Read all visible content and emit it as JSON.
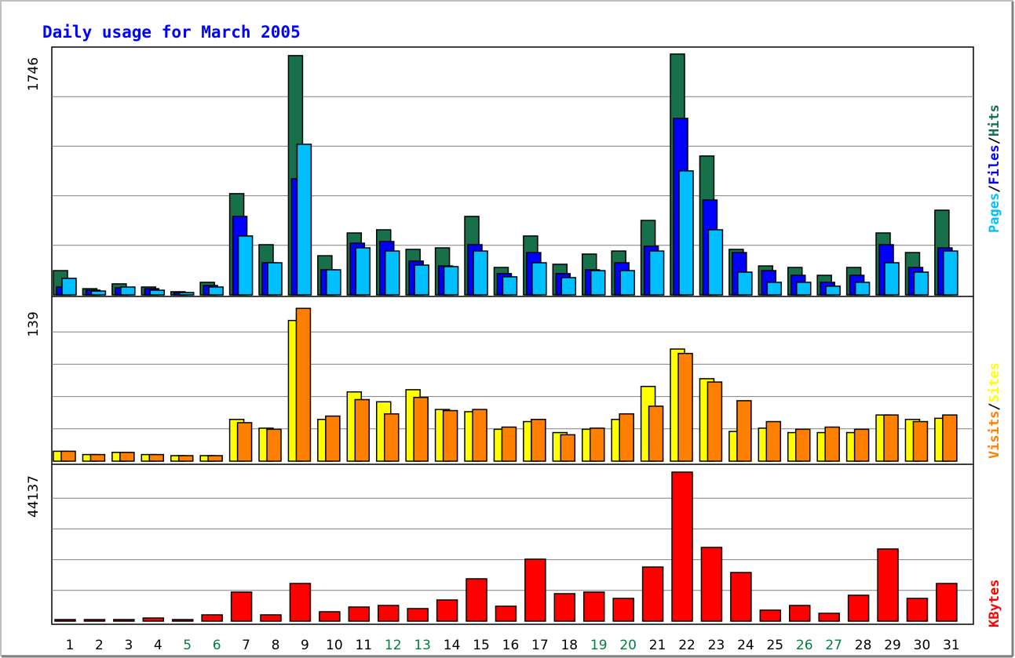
{
  "title": "Daily usage for March 2005",
  "legend_separator": "/",
  "chart_data": [
    {
      "type": "bar",
      "ylim": [
        0,
        1797
      ],
      "yticks": [
        1746
      ],
      "series": [
        {
          "name": "Hits",
          "color": "#17704a",
          "values": [
            176,
            45,
            80,
            57,
            23,
            91,
            734,
            364,
            1735,
            284,
            449,
            472,
            330,
            341,
            569,
            199,
            427,
            222,
            296,
            318,
            540,
            1746,
            1007,
            330,
            210,
            199,
            142,
            199,
            449,
            307,
            614
          ]
        },
        {
          "name": "Files",
          "color": "#0000ff",
          "values": [
            57,
            34,
            51,
            45,
            17,
            68,
            569,
            233,
            842,
            182,
            375,
            387,
            245,
            210,
            364,
            154,
            307,
            154,
            182,
            233,
            353,
            1280,
            688,
            307,
            176,
            142,
            91,
            142,
            364,
            199,
            341
          ]
        },
        {
          "name": "Pages",
          "color": "#00bfff",
          "values": [
            120,
            28,
            57,
            34,
            17,
            57,
            427,
            233,
            1092,
            182,
            341,
            318,
            216,
            205,
            318,
            131,
            233,
            125,
            176,
            176,
            318,
            899,
            472,
            165,
            91,
            91,
            63,
            91,
            233,
            165,
            318
          ]
        }
      ]
    },
    {
      "type": "bar",
      "ylim": [
        0,
        147
      ],
      "yticks": [
        139
      ],
      "series": [
        {
          "name": "Sites",
          "color": "#ffff00",
          "values": [
            9,
            6,
            8,
            6,
            5,
            5,
            38,
            30,
            128,
            38,
            63,
            54,
            65,
            47,
            45,
            29,
            36,
            26,
            29,
            38,
            68,
            102,
            75,
            27,
            30,
            26,
            26,
            26,
            42,
            38,
            39
          ]
        },
        {
          "name": "Visits",
          "color": "#ff8000",
          "values": [
            9,
            6,
            8,
            6,
            5,
            5,
            35,
            29,
            139,
            41,
            56,
            43,
            58,
            46,
            47,
            31,
            38,
            24,
            30,
            43,
            50,
            98,
            72,
            55,
            36,
            29,
            31,
            29,
            42,
            36,
            42
          ]
        }
      ]
    },
    {
      "type": "bar",
      "ylim": [
        0,
        45531
      ],
      "yticks": [
        44137
      ],
      "categories": [
        "1",
        "2",
        "3",
        "4",
        "5",
        "6",
        "7",
        "8",
        "9",
        "10",
        "11",
        "12",
        "13",
        "14",
        "15",
        "16",
        "17",
        "18",
        "19",
        "20",
        "21",
        "22",
        "23",
        "24",
        "25",
        "26",
        "27",
        "28",
        "29",
        "30",
        "31"
      ],
      "category_colors": [
        "#000",
        "#000",
        "#000",
        "#000",
        "#007f3f",
        "#007f3f",
        "#000",
        "#000",
        "#000",
        "#000",
        "#000",
        "#007f3f",
        "#007f3f",
        "#000",
        "#000",
        "#000",
        "#000",
        "#000",
        "#007f3f",
        "#007f3f",
        "#000",
        "#000",
        "#000",
        "#000",
        "#000",
        "#007f3f",
        "#007f3f",
        "#000",
        "#000",
        "#000",
        "#000"
      ],
      "series": [
        {
          "name": "KBytes",
          "color": "#ff0000",
          "values": [
            465,
            465,
            465,
            929,
            465,
            1858,
            8595,
            1858,
            11150,
            2788,
            4181,
            4646,
            3717,
            6272,
            12544,
            4414,
            18352,
            8131,
            8595,
            6737,
            16029,
            44137,
            21836,
            14403,
            3252,
            4646,
            2323,
            7666,
            21372,
            6737,
            11150
          ]
        }
      ]
    }
  ]
}
